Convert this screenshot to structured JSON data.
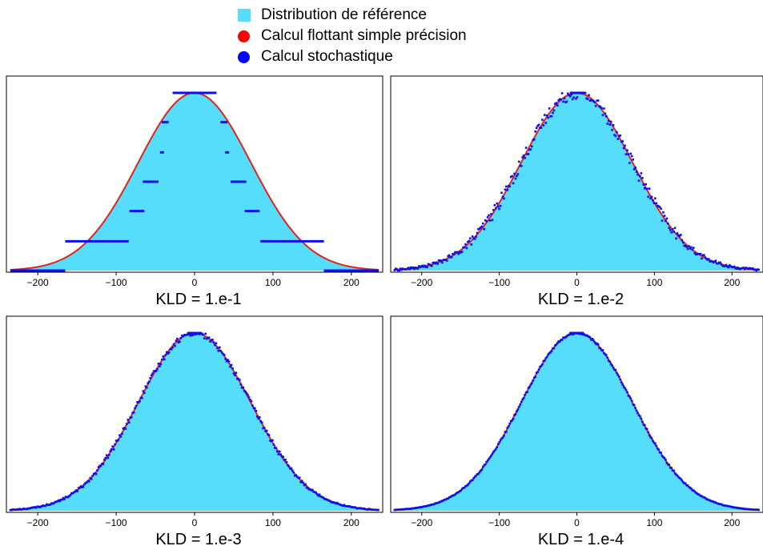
{
  "legend": {
    "items": [
      {
        "label": "Distribution de référence",
        "color": "#55ddfb",
        "marker": "square"
      },
      {
        "label": "Calcul flottant simple précision",
        "color": "#ff0000",
        "marker": "circle"
      },
      {
        "label": "Calcul stochastique",
        "color": "#0000ff",
        "marker": "circle"
      }
    ]
  },
  "colors": {
    "reference_fill": "#55ddfb",
    "float_curve": "#e4221b",
    "stochastic": "#0a10e8",
    "axes": "#000000"
  },
  "chart_data": [
    {
      "type": "area",
      "title": "KLD = 1.e-1",
      "xlim": [
        -240,
        240
      ],
      "xticks": [
        -200,
        -100,
        0,
        100,
        200
      ],
      "xtick_labels": [
        "−200",
        "−100",
        "0",
        "100",
        "200"
      ],
      "yticks_visible": false,
      "reference_distribution": {
        "name": "Distribution de référence",
        "shape": "gaussian",
        "mean": 0,
        "std": 72,
        "support": [
          -235,
          235
        ]
      },
      "series": [
        {
          "name": "Calcul flottant simple précision",
          "kind": "line",
          "shape": "gaussian",
          "mean": 0,
          "std": 72
        },
        {
          "name": "Calcul stochastique",
          "kind": "step",
          "levels": [
            {
              "x": [
                -28,
                28
              ],
              "density": 1.0
            },
            {
              "x": [
                -42,
                -33
              ],
              "density": 0.835
            },
            {
              "x": [
                33,
                42
              ],
              "density": 0.835
            },
            {
              "x": [
                -44,
                -39
              ],
              "density": 0.665
            },
            {
              "x": [
                39,
                44
              ],
              "density": 0.665
            },
            {
              "x": [
                -66,
                -46
              ],
              "density": 0.5
            },
            {
              "x": [
                46,
                66
              ],
              "density": 0.5
            },
            {
              "x": [
                -83,
                -64
              ],
              "density": 0.335
            },
            {
              "x": [
                64,
                83
              ],
              "density": 0.335
            },
            {
              "x": [
                -165,
                -84
              ],
              "density": 0.165
            },
            {
              "x": [
                84,
                165
              ],
              "density": 0.165
            },
            {
              "x": [
                -235,
                -165
              ],
              "density": 0.0
            },
            {
              "x": [
                165,
                235
              ],
              "density": 0.0
            }
          ]
        }
      ]
    },
    {
      "type": "area",
      "title": "KLD = 1.e-2",
      "xlim": [
        -240,
        240
      ],
      "xticks": [
        -200,
        -100,
        0,
        100,
        200
      ],
      "xtick_labels": [
        "−200",
        "−100",
        "0",
        "100",
        "200"
      ],
      "yticks_visible": false,
      "reference_distribution": {
        "name": "Distribution de référence",
        "shape": "gaussian",
        "mean": 0,
        "std": 72,
        "support": [
          -235,
          235
        ]
      },
      "series": [
        {
          "name": "Calcul flottant simple précision",
          "kind": "line",
          "shape": "gaussian",
          "mean": 0,
          "std": 72
        },
        {
          "name": "Calcul stochastique",
          "kind": "scatter",
          "shape": "gaussian",
          "mean": 0,
          "std": 72,
          "noise": 0.035
        }
      ]
    },
    {
      "type": "area",
      "title": "KLD = 1.e-3",
      "xlim": [
        -240,
        240
      ],
      "xticks": [
        -200,
        -100,
        0,
        100,
        200
      ],
      "xtick_labels": [
        "−200",
        "−100",
        "0",
        "100",
        "200"
      ],
      "yticks_visible": false,
      "reference_distribution": {
        "name": "Distribution de référence",
        "shape": "gaussian",
        "mean": 0,
        "std": 72,
        "support": [
          -235,
          235
        ]
      },
      "series": [
        {
          "name": "Calcul flottant simple précision",
          "kind": "line",
          "shape": "gaussian",
          "mean": 0,
          "std": 72
        },
        {
          "name": "Calcul stochastique",
          "kind": "scatter",
          "shape": "gaussian",
          "mean": 0,
          "std": 72,
          "noise": 0.015
        }
      ]
    },
    {
      "type": "area",
      "title": "KLD = 1.e-4",
      "xlim": [
        -240,
        240
      ],
      "xticks": [
        -200,
        -100,
        0,
        100,
        200
      ],
      "xtick_labels": [
        "−200",
        "−100",
        "0",
        "100",
        "200"
      ],
      "yticks_visible": false,
      "reference_distribution": {
        "name": "Distribution de référence",
        "shape": "gaussian",
        "mean": 0,
        "std": 72,
        "support": [
          -235,
          235
        ]
      },
      "series": [
        {
          "name": "Calcul flottant simple précision",
          "kind": "line",
          "shape": "gaussian",
          "mean": 0,
          "std": 72
        },
        {
          "name": "Calcul stochastique",
          "kind": "scatter",
          "shape": "gaussian",
          "mean": 0,
          "std": 72,
          "noise": 0.006
        }
      ]
    }
  ]
}
